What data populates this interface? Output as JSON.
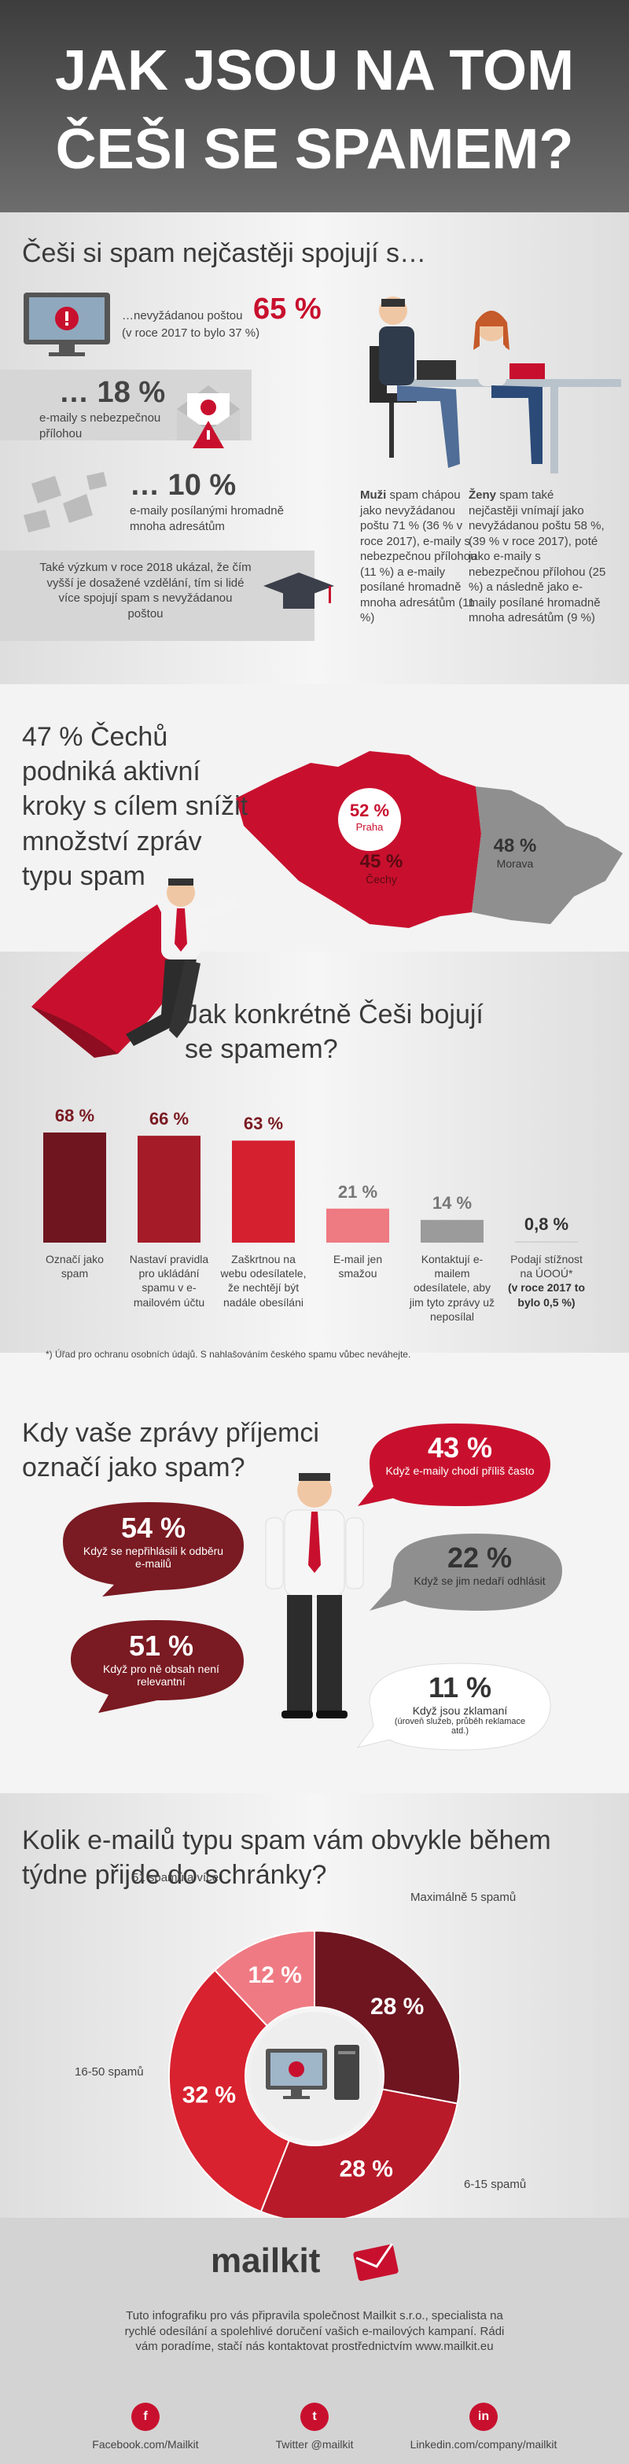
{
  "header": {
    "title_lines": [
      "JAK JSOU NA TOM",
      "ČEŠI SE SPAMEM?"
    ]
  },
  "associations": {
    "title": "Češi si spam nejčastěji spojují s…",
    "items": [
      {
        "label": "…nevyžádanou poštou",
        "value": "65 %",
        "note": "(v roce 2017 to bylo 37 %)"
      },
      {
        "value": "… 18 %",
        "label": "e-maily s nebezpečnou přílohou"
      },
      {
        "value": "… 10 %",
        "label": "e-maily posílanými hromadně mnoha adresátům"
      }
    ],
    "research": "Také výzkum v roce 2018 ukázal, že čím vyšší je dosažené vzdělání, tím si lidé více spojují spam s nevyžádanou poštou",
    "men": {
      "lead": "Muži",
      "text": "spam chápou jako nevyžádanou poštu 71 % (36 % v roce 2017), e-maily s nebezpečnou přílohou (11 %) a e-maily posílané hromadně mnoha adresátům (11 %)"
    },
    "women": {
      "lead": "Ženy",
      "text": "spam také nejčastěji vnímají jako nevyžádanou poštu 58 %, (39 % v roce 2017), poté jako e-maily s nebezpečnou přílohou (25 %) a následně jako e-maily posílané hromadně mnoha adresátům (9 %)"
    }
  },
  "active": {
    "text": "47 % Čechů podniká aktivní kroky s cílem snížit množství zpráv typu spam",
    "regions": [
      {
        "value": "52 %",
        "name": "Praha"
      },
      {
        "value": "45 %",
        "name": "Čechy"
      },
      {
        "value": "48 %",
        "name": "Morava"
      }
    ]
  },
  "fight": {
    "title": "Jak konkrétně Češi bojují se spamem?",
    "categories": [
      "Označí jako spam",
      "Nastaví pravidla pro ukládání spamu v e-mailovém účtu",
      "Zaškrtnou na webu odesílatele, že nechtějí být nadále obesíláni",
      "E-mail jen smažou",
      "Kontaktují e-mailem odesílatele, aby jim tyto zprávy už neposílal",
      "Podají stížnost na ÚOOÚ*"
    ],
    "last_note": "(v roce 2017 to bylo 0,5 %)",
    "values": [
      68,
      66,
      63,
      21,
      14,
      0.8
    ],
    "value_labels": [
      "68 %",
      "66 %",
      "63 %",
      "21 %",
      "14 %",
      "0,8 %"
    ],
    "colors": [
      "#6e1520",
      "#a51b28",
      "#d4202f",
      "#ee7a82",
      "#9b9b9b",
      "#cfcfcf"
    ],
    "footnote": "*) Úřad pro ochranu osobních údajů. S nahlašováním českého spamu vůbec neváhejte."
  },
  "reasons": {
    "title": "Kdy vaše zprávy příjemci označí jako spam?",
    "bubbles": [
      {
        "value": "54 %",
        "text": "Když se nepřihlásili k odběru e-mailů"
      },
      {
        "value": "43 %",
        "text": "Když e-maily chodí příliš často"
      },
      {
        "value": "22 %",
        "text": "Když se jim nedaří odhlásit"
      },
      {
        "value": "51 %",
        "text": "Když pro ně obsah není relevantní"
      },
      {
        "value": "11 %",
        "text": "Když jsou zklamaní",
        "sub": "(úroveň služeb, průběh reklamace atd.)"
      }
    ]
  },
  "spam_count": {
    "title": "Kolik e-mailů typu spam vám obvykle během týdne přijde do schránky?",
    "categories": [
      "Maximálně 5 spamů",
      "6-15 spamů",
      "16-50 spamů",
      "51 spamů a více"
    ],
    "values": [
      28,
      28,
      32,
      12
    ],
    "value_labels": [
      "28 %",
      "28 %",
      "32 %",
      "12 %"
    ],
    "colors": [
      "#6e1520",
      "#b81a2a",
      "#d8222f",
      "#ef7a83"
    ]
  },
  "footer": {
    "brand": "mailkit",
    "text": "Tuto infografiku pro vás připravila společnost Mailkit s.r.o., specialista na rychlé odesílání a spolehlivé doručení vašich e-mailových kampaní. Rádi vám poradíme, stačí nás kontaktovat prostřednictvím www.mailkit.eu",
    "social": [
      {
        "icon": "f",
        "label": "Facebook.com/Mailkit"
      },
      {
        "icon": "t",
        "label": "Twitter @mailkit"
      },
      {
        "icon": "in",
        "label": "Linkedin.com/company/mailkit"
      }
    ]
  }
}
